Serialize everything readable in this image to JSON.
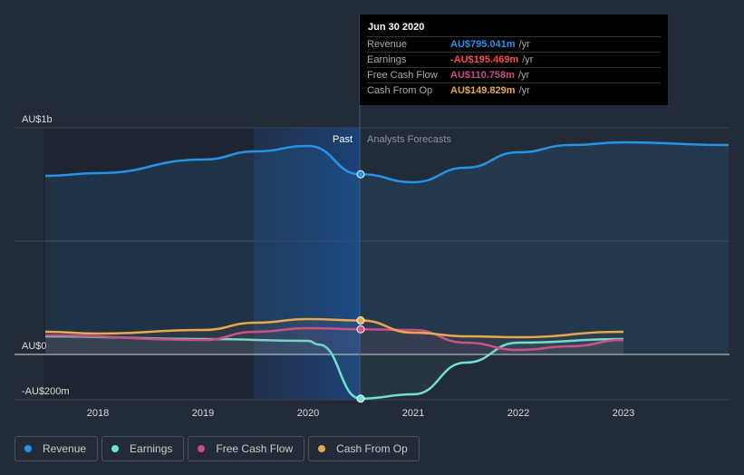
{
  "tooltip": {
    "date": "Jun 30 2020",
    "rows": [
      {
        "label": "Revenue",
        "value": "AU$795.041m",
        "unit": "/yr",
        "color": "#2394e8"
      },
      {
        "label": "Earnings",
        "value": "-AU$195.469m",
        "unit": "/yr",
        "color": "#ff4a4a"
      },
      {
        "label": "Free Cash Flow",
        "value": "AU$110.758m",
        "unit": "/yr",
        "color": "#c84c8d"
      },
      {
        "label": "Cash From Op",
        "value": "AU$149.829m",
        "unit": "/yr",
        "color": "#e8a84d"
      }
    ]
  },
  "chart_data": {
    "type": "line",
    "ylim": [
      -200,
      1000
    ],
    "y_ticks": [
      {
        "v": 1000,
        "label": "AU$1b"
      },
      {
        "v": 0,
        "label": "AU$0"
      },
      {
        "v": -200,
        "label": "-AU$200m"
      }
    ],
    "x_ticks": [
      "2018",
      "2019",
      "2020",
      "2021",
      "2022",
      "2023"
    ],
    "xlim": [
      2017.2,
      2024
    ],
    "past_label": "Past",
    "forecast_label": "Analysts Forecasts",
    "divider_x": 2020.5,
    "series": [
      {
        "name": "Revenue",
        "color": "#2394e8",
        "x": [
          2017.5,
          2018,
          2019,
          2019.5,
          2020,
          2020.5,
          2021,
          2021.5,
          2022,
          2022.5,
          2023,
          2024
        ],
        "y": [
          788,
          800,
          860,
          896,
          920,
          795,
          760,
          824,
          892,
          924,
          936,
          924
        ]
      },
      {
        "name": "Earnings",
        "color": "#6ee0d4",
        "x": [
          2017.5,
          2019,
          2020,
          2020.1,
          2020.5,
          2021,
          2021.5,
          2022,
          2023
        ],
        "y": [
          80,
          68,
          60,
          44,
          -195,
          -176,
          -36,
          52,
          68
        ]
      },
      {
        "name": "Free Cash Flow",
        "color": "#c84c8d",
        "x": [
          2017.5,
          2019,
          2019.5,
          2020,
          2020.5,
          2021,
          2021.5,
          2022,
          2022.5,
          2023
        ],
        "y": [
          84,
          64,
          100,
          116,
          111,
          108,
          52,
          20,
          36,
          64
        ]
      },
      {
        "name": "Cash From Op",
        "color": "#e8a84d",
        "x": [
          2017.5,
          2018,
          2019,
          2019.5,
          2020,
          2020.5,
          2021,
          2021.5,
          2022,
          2023
        ],
        "y": [
          100,
          92,
          108,
          140,
          156,
          150,
          96,
          80,
          76,
          100
        ]
      }
    ]
  }
}
